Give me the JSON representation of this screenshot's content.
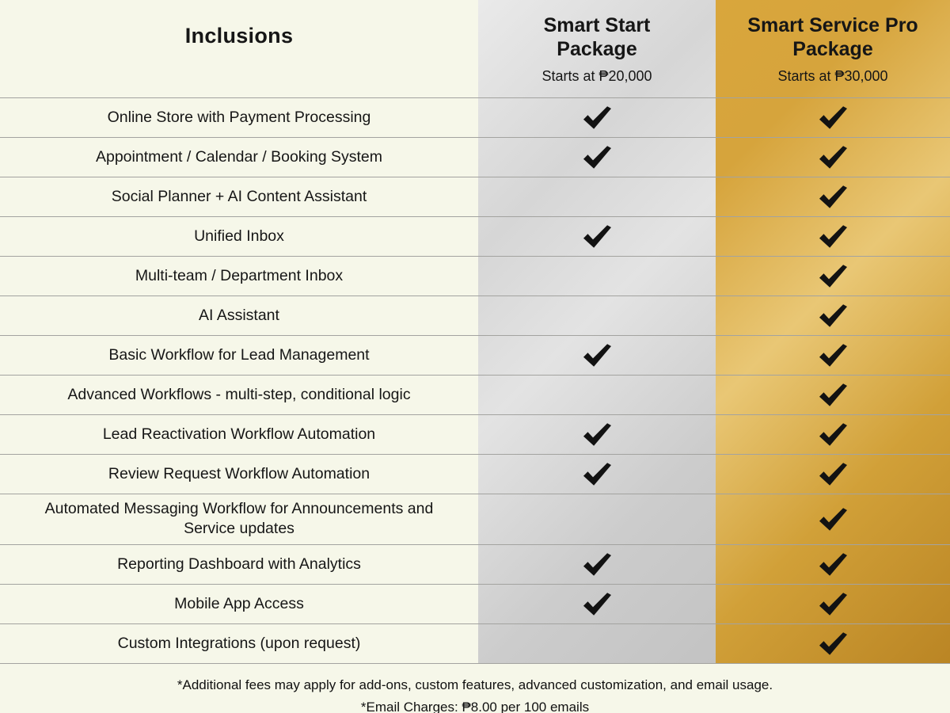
{
  "table": {
    "inclusions_header": "Inclusions",
    "columns": [
      {
        "title": "Smart Start Package",
        "subtitle": "Starts at ₱20,000"
      },
      {
        "title": "Smart Service Pro Package",
        "subtitle": "Starts at ₱30,000"
      }
    ],
    "rows": [
      {
        "feature": "Online Store with Payment Processing",
        "smart_start": true,
        "smart_service_pro": true
      },
      {
        "feature": "Appointment / Calendar / Booking System",
        "smart_start": true,
        "smart_service_pro": true
      },
      {
        "feature": "Social Planner + AI Content Assistant",
        "smart_start": false,
        "smart_service_pro": true
      },
      {
        "feature": "Unified Inbox",
        "smart_start": true,
        "smart_service_pro": true
      },
      {
        "feature": "Multi-team / Department Inbox",
        "smart_start": false,
        "smart_service_pro": true
      },
      {
        "feature": "AI Assistant",
        "smart_start": false,
        "smart_service_pro": true
      },
      {
        "feature": "Basic Workflow for Lead Management",
        "smart_start": true,
        "smart_service_pro": true
      },
      {
        "feature": "Advanced Workflows - multi-step, conditional logic",
        "smart_start": false,
        "smart_service_pro": true
      },
      {
        "feature": "Lead Reactivation Workflow Automation",
        "smart_start": true,
        "smart_service_pro": true
      },
      {
        "feature": "Review Request Workflow Automation",
        "smart_start": true,
        "smart_service_pro": true
      },
      {
        "feature": "Automated Messaging Workflow for Announcements and Service updates",
        "smart_start": false,
        "smart_service_pro": true
      },
      {
        "feature": "Reporting Dashboard with Analytics",
        "smart_start": true,
        "smart_service_pro": true
      },
      {
        "feature": "Mobile App Access",
        "smart_start": true,
        "smart_service_pro": true
      },
      {
        "feature": "Custom Integrations (upon request)",
        "smart_start": false,
        "smart_service_pro": true
      }
    ]
  },
  "footnotes": [
    "*Additional fees may apply for add-ons, custom features, advanced customization, and email usage.",
    "*Email Charges: ₱8.00 per 100 emails"
  ],
  "colors": {
    "background": "#f6f7e9",
    "silver_column": "#d6d6d6",
    "gold_column": "#d1a038",
    "divider": "#a3a3a0",
    "text": "#161616"
  }
}
